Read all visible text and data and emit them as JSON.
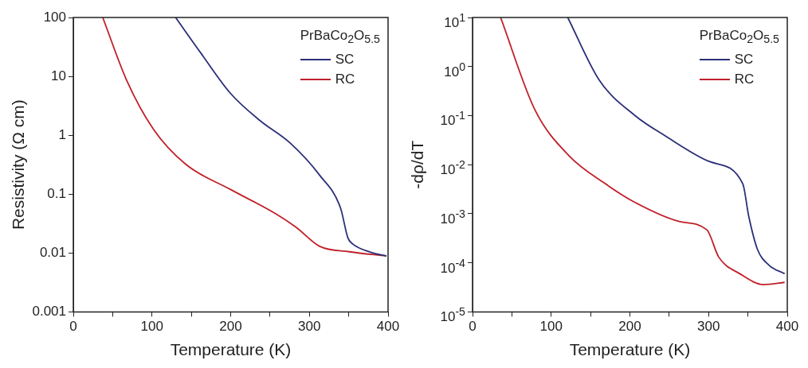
{
  "chart_data": [
    {
      "type": "line",
      "xlabel": "Temperature (K)",
      "ylabel": "Resistivity (Ω cm)",
      "legend_title": "PrBaCo$_{2}$O$_{5.5}$",
      "legend": "top right",
      "log": "y",
      "grid": false,
      "marker": "none",
      "line_style": "solid",
      "xlim": [
        0,
        400
      ],
      "xticks": [
        0,
        {
          "value": 50,
          "label": null
        },
        100,
        {
          "value": 150,
          "label": null
        },
        200,
        {
          "value": 250,
          "label": null
        },
        300,
        {
          "value": 350,
          "label": null
        },
        400
      ],
      "ylim": [
        0.001,
        100
      ],
      "yticks": [
        0.001,
        0.01,
        0.1,
        1,
        10,
        100
      ],
      "series": [
        {
          "name": "SC",
          "color": "#2b2f78",
          "x": [
            130,
            162,
            200,
            237.6,
            275,
            313,
            339.6,
            349,
            354.7,
            377,
            398
          ],
          "values": [
            100,
            25,
            5.1,
            1.76,
            0.75,
            0.21,
            0.058,
            0.018,
            0.0144,
            0.0104,
            0.0089
          ]
        },
        {
          "name": "RC",
          "color": "#c0202a",
          "x": [
            37.4,
            67.6,
            101.6,
            143,
            199.8,
            256.5,
            282.9,
            313,
            351,
            398
          ],
          "values": [
            100,
            8.7,
            1.28,
            0.32,
            0.12,
            0.047,
            0.0275,
            0.013,
            0.0105,
            0.0089
          ]
        }
      ]
    },
    {
      "type": "line",
      "xlabel": "Temperature (K)",
      "ylabel": "-dρ/dT",
      "legend_title": "PrBaCo$_{2}$O$_{5.5}$",
      "legend": "top right",
      "log": "y",
      "grid": false,
      "marker": "none",
      "line_style": "solid",
      "xlim": [
        0,
        400
      ],
      "xticks": [
        0,
        {
          "value": 50,
          "label": null
        },
        100,
        {
          "value": 150,
          "label": null
        },
        200,
        {
          "value": 250,
          "label": null
        },
        300,
        {
          "value": 350,
          "label": null
        },
        400
      ],
      "ylim": [
        1e-05,
        10
      ],
      "yticks": [
        {
          "value": 1e-05,
          "label": "10$^{-5}$"
        },
        {
          "value": 0.0001,
          "label": "10$^{-4}$"
        },
        {
          "value": 0.001,
          "label": "10$^{-3}$"
        },
        {
          "value": 0.01,
          "label": "10$^{-2}$"
        },
        {
          "value": 0.1,
          "label": "10$^{-1}$"
        },
        {
          "value": 1,
          "label": "10$^{0}$"
        },
        {
          "value": 10,
          "label": "10$^{1}$"
        }
      ],
      "series": [
        {
          "name": "SC",
          "color": "#2b2f78",
          "x": [
            121,
            161,
            206.6,
            244.6,
            301.6,
            343.4,
            351,
            362,
            377,
            396.6
          ],
          "values": [
            10,
            0.53,
            0.1,
            0.039,
            0.0115,
            0.0041,
            0.00089,
            0.00019,
            8.9e-05,
            6e-05
          ]
        },
        {
          "name": "RC",
          "color": "#c0202a",
          "x": [
            35.7,
            79.4,
            123,
            168.7,
            206.6,
            263.6,
            297.8,
            313,
            339.6,
            370,
            396.6
          ],
          "values": [
            10,
            0.13,
            0.015,
            0.0041,
            0.0017,
            0.00069,
            0.00047,
            0.00013,
            6e-05,
            3.6e-05,
            4e-05
          ]
        }
      ]
    }
  ]
}
